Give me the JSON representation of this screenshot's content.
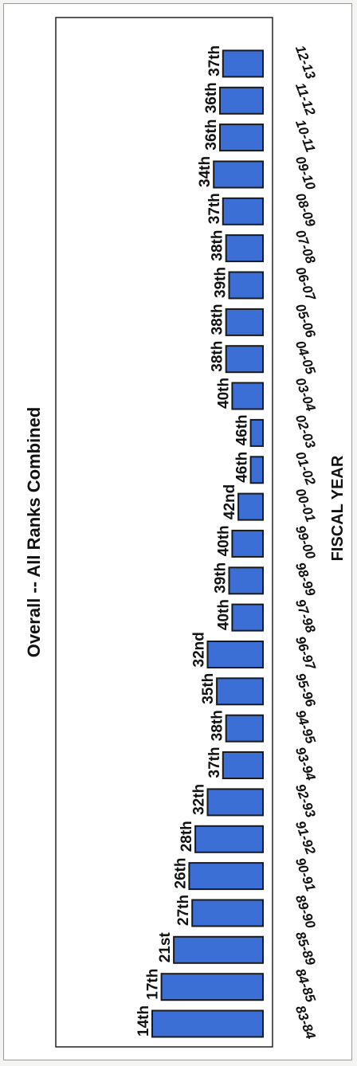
{
  "chart_data": {
    "type": "bar",
    "orientation": "rotated-90",
    "title": "Overall -- All Ranks Combined",
    "xlabel": "FISCAL YEAR",
    "ylabel": "",
    "categories": [
      "83-84",
      "84-85",
      "85-89",
      "89-90",
      "90-91",
      "91-92",
      "92-93",
      "93-94",
      "94-95",
      "95-96",
      "96-97",
      "97-98",
      "98-99",
      "99-00",
      "00-01",
      "01-02",
      "02-03",
      "03-04",
      "04-05",
      "05-06",
      "06-07",
      "07-08",
      "08-09",
      "09-10",
      "10-11",
      "11-12",
      "12-13"
    ],
    "values": [
      14,
      17,
      21,
      27,
      26,
      28,
      32,
      37,
      38,
      35,
      32,
      40,
      39,
      40,
      42,
      46,
      46,
      40,
      38,
      38,
      39,
      38,
      37,
      34,
      36,
      36,
      37
    ],
    "value_labels": [
      "14th",
      "17th",
      "21st",
      "27th",
      "26th",
      "28th",
      "32th",
      "37th",
      "38th",
      "35th",
      "32nd",
      "40th",
      "39th",
      "40th",
      "42nd",
      "46th",
      "46th",
      "40th",
      "38th",
      "38th",
      "39th",
      "38th",
      "37th",
      "34th",
      "36th",
      "36th",
      "37th"
    ],
    "ylim": [
      0,
      50
    ],
    "grid": false,
    "legend": "none",
    "bar_color": "#3b6fd6"
  }
}
